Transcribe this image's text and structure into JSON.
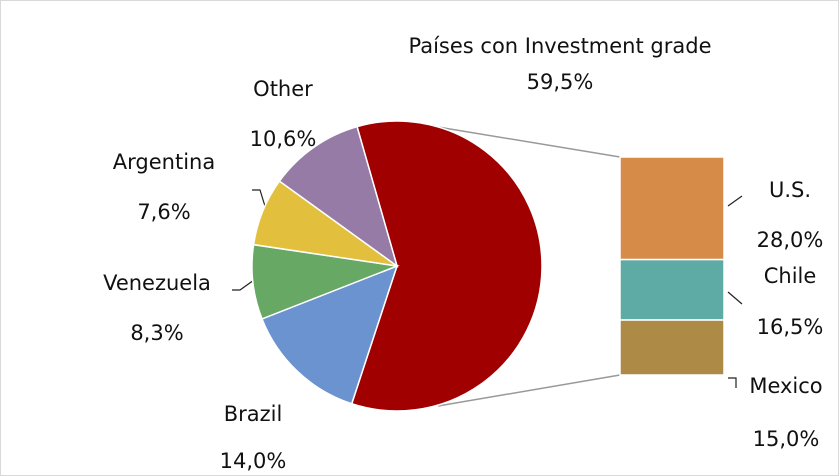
{
  "chart_data": {
    "type": "pie-of-bar",
    "categories": [
      "Países con Investment grade",
      "Brazil",
      "Venezuela",
      "Argentina",
      "Other"
    ],
    "values": [
      59.5,
      14.0,
      8.3,
      7.6,
      10.6
    ],
    "value_labels": [
      "59,5%",
      "14,0%",
      "8,3%",
      "7,6%",
      "10,6%"
    ],
    "colors": [
      "#a00000",
      "#6a93cf",
      "#67a864",
      "#e2c03e",
      "#957ba6"
    ],
    "breakdown": {
      "type": "bar",
      "categories": [
        "U.S.",
        "Chile",
        "Mexico"
      ],
      "values": [
        28.0,
        16.5,
        15.0
      ],
      "value_labels": [
        "28,0%",
        "16,5%",
        "15,0%"
      ],
      "colors": [
        "#d68b49",
        "#5eaaa5",
        "#ad8a45"
      ]
    }
  }
}
